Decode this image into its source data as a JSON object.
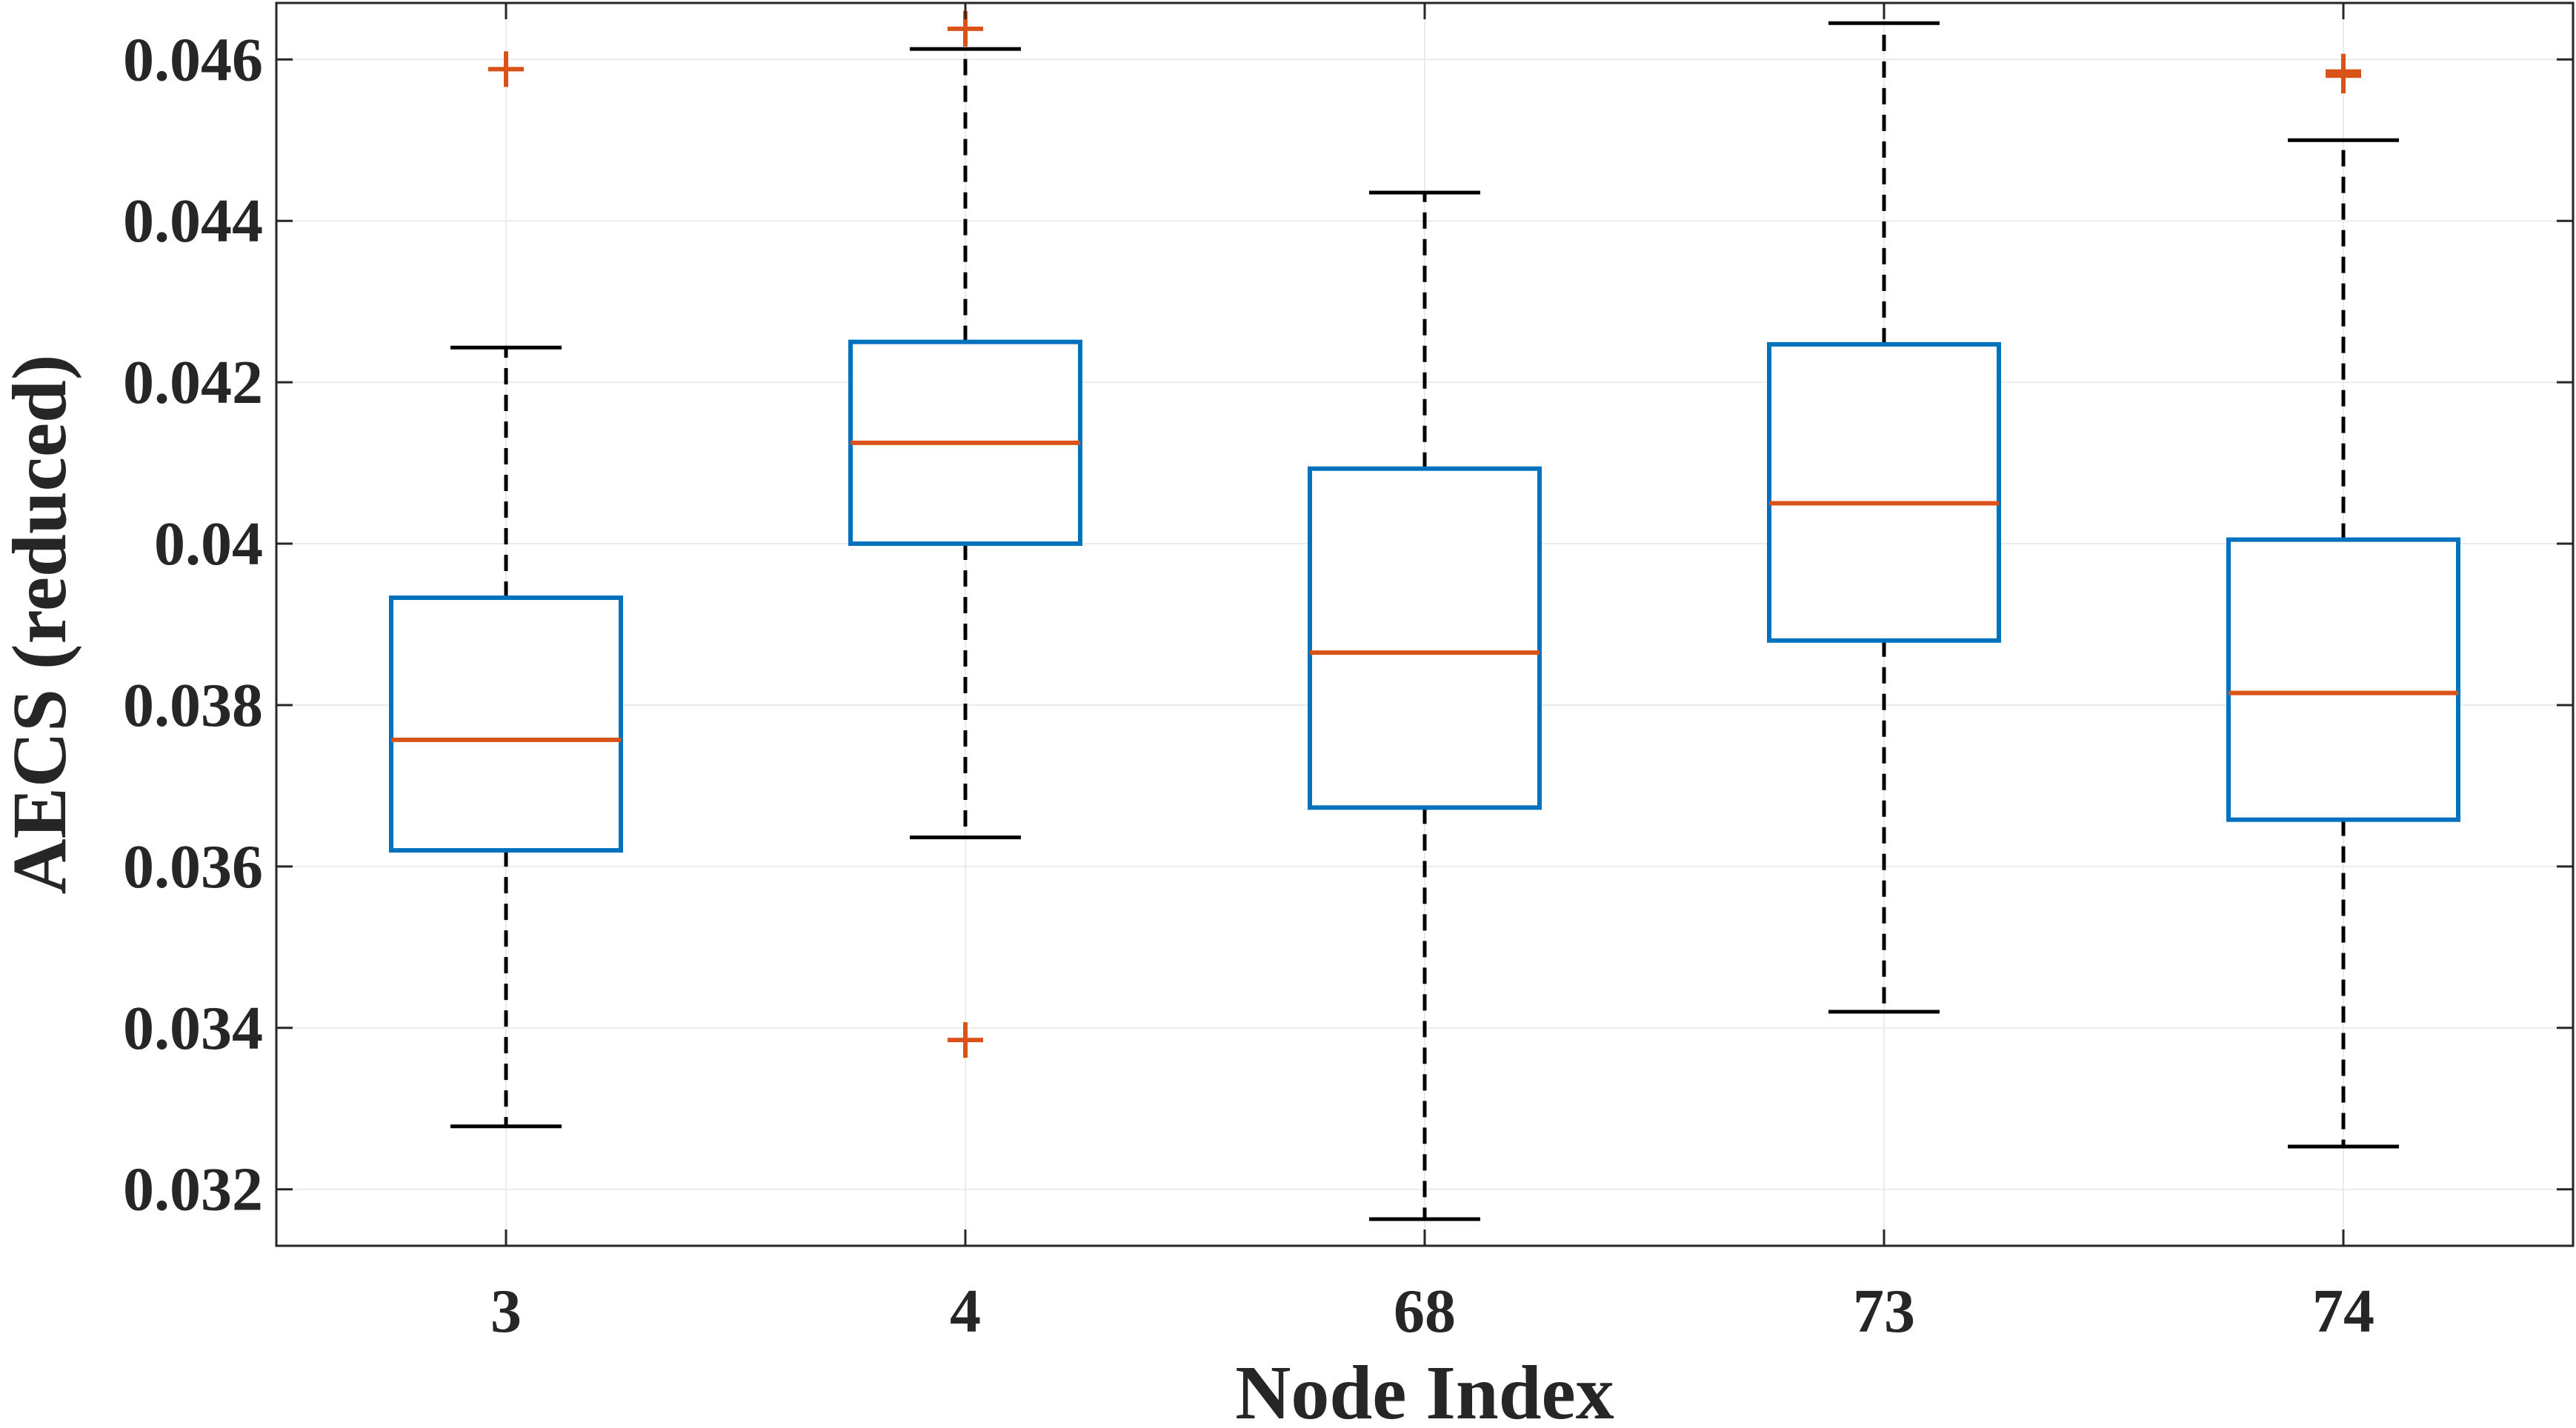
{
  "chart_data": {
    "type": "box",
    "title": "",
    "xlabel": "Node Index",
    "ylabel": "AECS (reduced)",
    "ylim": [
      0.0313,
      0.0467
    ],
    "yticks": [
      0.032,
      0.034,
      0.036,
      0.038,
      0.04,
      0.042,
      0.044,
      0.046
    ],
    "ytick_labels": [
      "0.032",
      "0.034",
      "0.036",
      "0.038",
      "0.04",
      "0.042",
      "0.044",
      "0.046"
    ],
    "grid": true,
    "categories": [
      "3",
      "4",
      "68",
      "73",
      "74"
    ],
    "boxes": [
      {
        "category": "3",
        "whisker_low": 0.03278,
        "q1": 0.0362,
        "median": 0.03757,
        "q3": 0.03933,
        "whisker_high": 0.04243,
        "outliers": [
          0.04588
        ]
      },
      {
        "category": "4",
        "whisker_low": 0.03636,
        "q1": 0.04,
        "median": 0.04125,
        "q3": 0.0425,
        "whisker_high": 0.04613,
        "outliers": [
          0.04638,
          0.03385
        ]
      },
      {
        "category": "68",
        "whisker_low": 0.03163,
        "q1": 0.03673,
        "median": 0.03865,
        "q3": 0.04093,
        "whisker_high": 0.04435,
        "outliers": []
      },
      {
        "category": "73",
        "whisker_low": 0.0342,
        "q1": 0.0388,
        "median": 0.0405,
        "q3": 0.04247,
        "whisker_high": 0.04645,
        "outliers": []
      },
      {
        "category": "74",
        "whisker_low": 0.03253,
        "q1": 0.03658,
        "median": 0.03815,
        "q3": 0.04005,
        "whisker_high": 0.045,
        "outliers": [
          0.0458,
          0.04585
        ]
      }
    ],
    "colors": {
      "box": "#0072BD",
      "median": "#D95319",
      "whisker": "#000000",
      "outlier": "#D95319",
      "grid": "#ebebeb",
      "axis": "#262626"
    }
  }
}
